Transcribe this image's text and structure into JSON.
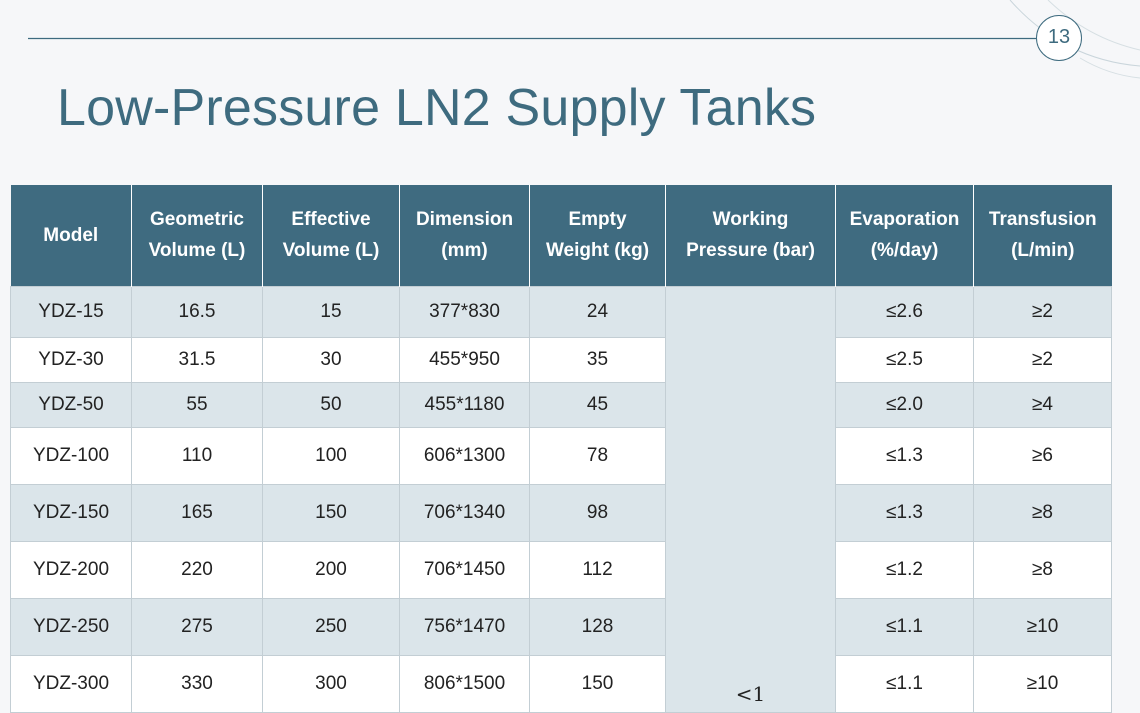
{
  "slide": {
    "page_number": "13",
    "title": "Low-Pressure LN2 Supply Tanks"
  },
  "table": {
    "headers": [
      [
        "Model"
      ],
      [
        "Geometric",
        "Volume (L)"
      ],
      [
        "Effective",
        "Volume (L)"
      ],
      [
        "Dimension",
        "(mm)"
      ],
      [
        "Empty",
        "Weight (kg)"
      ],
      [
        "Working",
        "Pressure (bar)"
      ],
      [
        "Evaporation",
        "(%/day)"
      ],
      [
        "Transfusion",
        "(L/min)"
      ]
    ],
    "working_pressure": "<1",
    "rows": [
      {
        "model": "YDZ-15",
        "geometric": "16.5",
        "effective": "15",
        "dimension": "377*830",
        "weight": "24",
        "evaporation": "≤2.6",
        "transfusion": "≥2"
      },
      {
        "model": "YDZ-30",
        "geometric": "31.5",
        "effective": "30",
        "dimension": "455*950",
        "weight": "35",
        "evaporation": "≤2.5",
        "transfusion": "≥2"
      },
      {
        "model": "YDZ-50",
        "geometric": "55",
        "effective": "50",
        "dimension": "455*1180",
        "weight": "45",
        "evaporation": "≤2.0",
        "transfusion": "≥4"
      },
      {
        "model": "YDZ-100",
        "geometric": "110",
        "effective": "100",
        "dimension": "606*1300",
        "weight": "78",
        "evaporation": "≤1.3",
        "transfusion": "≥6"
      },
      {
        "model": "YDZ-150",
        "geometric": "165",
        "effective": "150",
        "dimension": "706*1340",
        "weight": "98",
        "evaporation": "≤1.3",
        "transfusion": "≥8"
      },
      {
        "model": "YDZ-200",
        "geometric": "220",
        "effective": "200",
        "dimension": "706*1450",
        "weight": "112",
        "evaporation": "≤1.2",
        "transfusion": "≥8"
      },
      {
        "model": "YDZ-250",
        "geometric": "275",
        "effective": "250",
        "dimension": "756*1470",
        "weight": "128",
        "evaporation": "≤1.1",
        "transfusion": "≥10"
      },
      {
        "model": "YDZ-300",
        "geometric": "330",
        "effective": "300",
        "dimension": "806*1500",
        "weight": "150",
        "evaporation": "≤1.1",
        "transfusion": "≥10"
      }
    ]
  },
  "colors": {
    "accent": "#3e6b7f",
    "header_bg": "#3f6b80",
    "row_tint": "#dbe5ea"
  }
}
